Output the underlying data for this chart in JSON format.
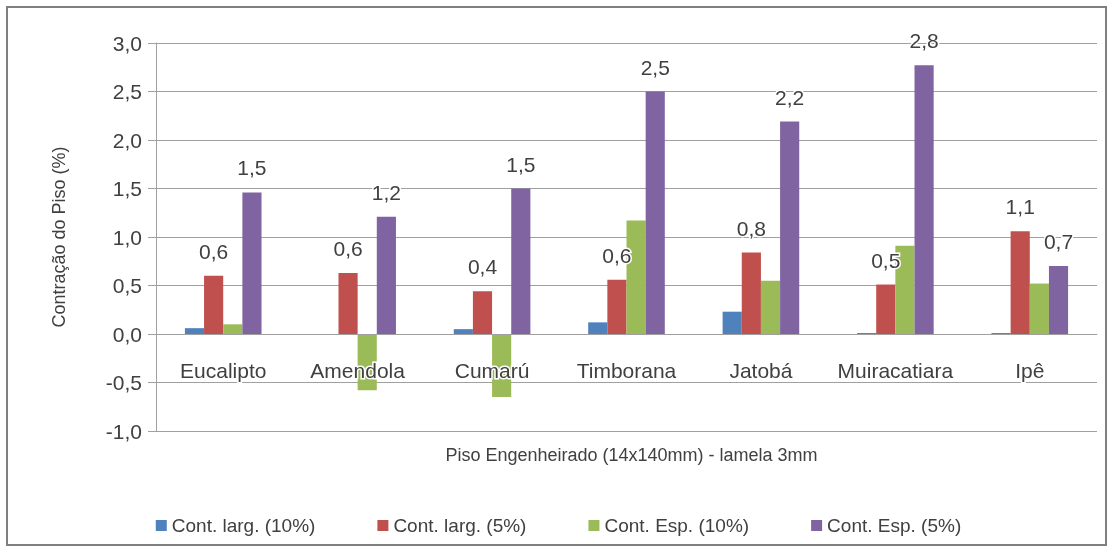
{
  "chart_data": {
    "type": "bar",
    "xlabel": "Piso Engenheirado (14x140mm) - lamela 3mm",
    "ylabel": "Contração do Piso (%)",
    "categories": [
      "Eucalipto",
      "Amendola",
      "Cumarú",
      "Timborana",
      "Jatobá",
      "Muiracatiara",
      "Ipê"
    ],
    "series": [
      {
        "name": "Cont. larg. (10%)",
        "color": "#4f81bd",
        "values": [
          0.06,
          -0.01,
          0.05,
          0.12,
          0.23,
          0.01,
          0.01
        ]
      },
      {
        "name": "Cont. larg. (5%)",
        "color": "#c0504d",
        "values": [
          0.6,
          0.63,
          0.44,
          0.56,
          0.84,
          0.51,
          1.06
        ],
        "value_labels": [
          "0,6",
          "0,6",
          "0,4",
          "0,6",
          "0,8",
          "0,5",
          "1,1"
        ]
      },
      {
        "name": "Cont. Esp. (10%)",
        "color": "#9bbb59",
        "values": [
          0.1,
          -0.58,
          -0.65,
          1.17,
          0.55,
          0.91,
          0.52
        ]
      },
      {
        "name": "Cont. Esp. (5%)",
        "color": "#8064a2",
        "values": [
          1.46,
          1.21,
          1.5,
          2.5,
          2.19,
          2.77,
          0.7
        ],
        "value_labels": [
          "1,5",
          "1,2",
          "1,5",
          "2,5",
          "2,2",
          "2,8",
          "0,7"
        ]
      }
    ],
    "ylim": [
      -1,
      3
    ],
    "yticks": [
      {
        "value": -1,
        "label": "-1,0"
      },
      {
        "value": -0.5,
        "label": "-0,5"
      },
      {
        "value": 0,
        "label": "0,0"
      },
      {
        "value": 0.5,
        "label": "0,5"
      },
      {
        "value": 1,
        "label": "1,0"
      },
      {
        "value": 1.5,
        "label": "1,5"
      },
      {
        "value": 2,
        "label": "2,0"
      },
      {
        "value": 2.5,
        "label": "2,5"
      },
      {
        "value": 3,
        "label": "3,0"
      }
    ],
    "grid": "y",
    "legend": "bottom"
  }
}
